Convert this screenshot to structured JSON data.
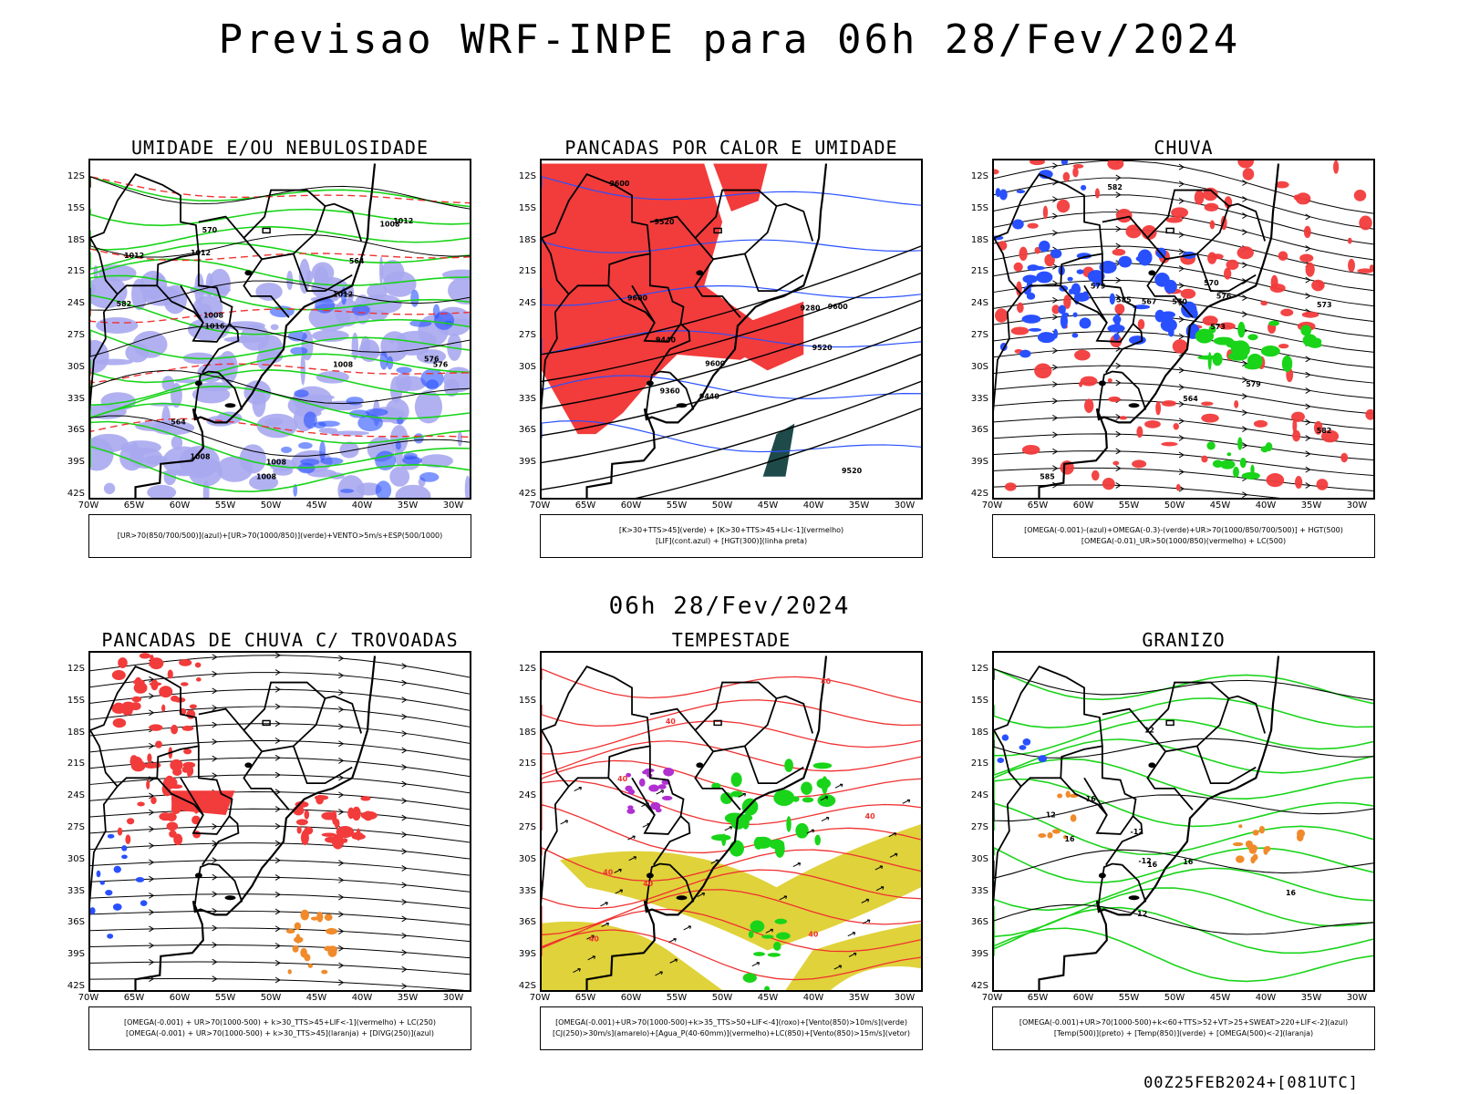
{
  "main_title": "Previsao WRF-INPE  para 06h 28/Fev/2024",
  "mid_title": "06h 28/Fev/2024",
  "footer_stamp": "00Z25FEB2024+[081UTC]",
  "lat_labels": [
    "12S",
    "15S",
    "18S",
    "21S",
    "24S",
    "27S",
    "30S",
    "33S",
    "36S",
    "39S",
    "42S"
  ],
  "lon_labels": [
    "70W",
    "65W",
    "60W",
    "55W",
    "50W",
    "45W",
    "40W",
    "35W",
    "30W"
  ],
  "colors": {
    "red": "#f23b3b",
    "green": "#19d419",
    "blue": "#2850ff",
    "lavender": "#a8a8f0",
    "dark_teal": "#1e4a4a",
    "yellow": "#e0d23a",
    "orange": "#f08a2a",
    "purple": "#b030d0",
    "contour_black": "#000000",
    "contour_red": "#f03030"
  },
  "panels": [
    {
      "id": "umidade",
      "title": "UMIDADE E/OU NEBULOSIDADE",
      "legend": [
        "[UR>70(850/700/500)](azul)+[UR>70(1000/850)](verde)+VENTO>5m/s+ESP(500/1000)"
      ],
      "contour_labels": [
        "1012",
        "1012",
        "1012",
        "1008",
        "1008",
        "1008",
        "1008",
        "1016",
        "1012",
        "576",
        "576",
        "570",
        "564",
        "564",
        "582",
        "1008",
        "1008"
      ]
    },
    {
      "id": "pancadas_calor",
      "title": "PANCADAS POR CALOR E UMIDADE",
      "legend": [
        "[K>30+TTS>45](verde) + [K>30+TTS>45+LI<-1](vermelho)",
        "[LIF](cont.azul) + [HGT(300)](linha preta)"
      ],
      "contour_labels": [
        "9600",
        "9600",
        "9600",
        "9520",
        "9520",
        "9520",
        "9440",
        "9440",
        "9360",
        "9280",
        "9600"
      ]
    },
    {
      "id": "chuva",
      "title": "CHUVA",
      "legend": [
        "[OMEGA(-0.001)-(azul)+OMEGA(-0.3)-(verde)+UR>70(1000/850/700/500)] + HGT(500)",
        "[OMEGA(-0.01)_UR>50(1000/850)(vermelho) + LC(500)"
      ],
      "contour_labels": [
        "585",
        "582",
        "582",
        "579",
        "579",
        "576",
        "573",
        "570",
        "567",
        "564",
        "570",
        "573",
        "585"
      ]
    },
    {
      "id": "pancadas_trovoadas",
      "title": "PANCADAS DE CHUVA C/ TROVOADAS",
      "legend": [
        "[OMEGA(-0.001) + UR>70(1000-500) + k>30_TTS>45+LIF<-1](vermelho) + LC(250)",
        "[OMEGA(-0.001) + UR>70(1000-500) + k>30_TTS>45](laranja) + [DIVG(250)](azul)"
      ],
      "contour_labels": []
    },
    {
      "id": "tempestade",
      "title": "TEMPESTADE",
      "legend": [
        "[OMEGA(-0.001)+UR>70(1000-500)+k>35_TTS>50+LIF<-4](roxo)+[Vento(850)>10m/s](verde)",
        "[CJ(250)>30m/s](amarelo)+[Agua_P(40-60mm)](vermelho)+LC(850)+[Vento(850)>15m/s](vetor)"
      ],
      "contour_labels": [
        "40",
        "40",
        "40",
        "40",
        "40",
        "40",
        "40",
        "40"
      ]
    },
    {
      "id": "granizo",
      "title": "GRANIZO",
      "legend": [
        "[OMEGA(-0.001)+UR>70(1000-500)+k<60+TTS>52+VT>25+SWEAT>220+LIF<-2](azul)",
        "[Temp(500)](preto) + [Temp(850)](verde) + [OMEGA(500)<-2](laranja)"
      ],
      "contour_labels": [
        "16",
        "16",
        "16",
        "16",
        "12",
        "12",
        "12",
        "-12",
        "-12",
        "16"
      ]
    }
  ]
}
